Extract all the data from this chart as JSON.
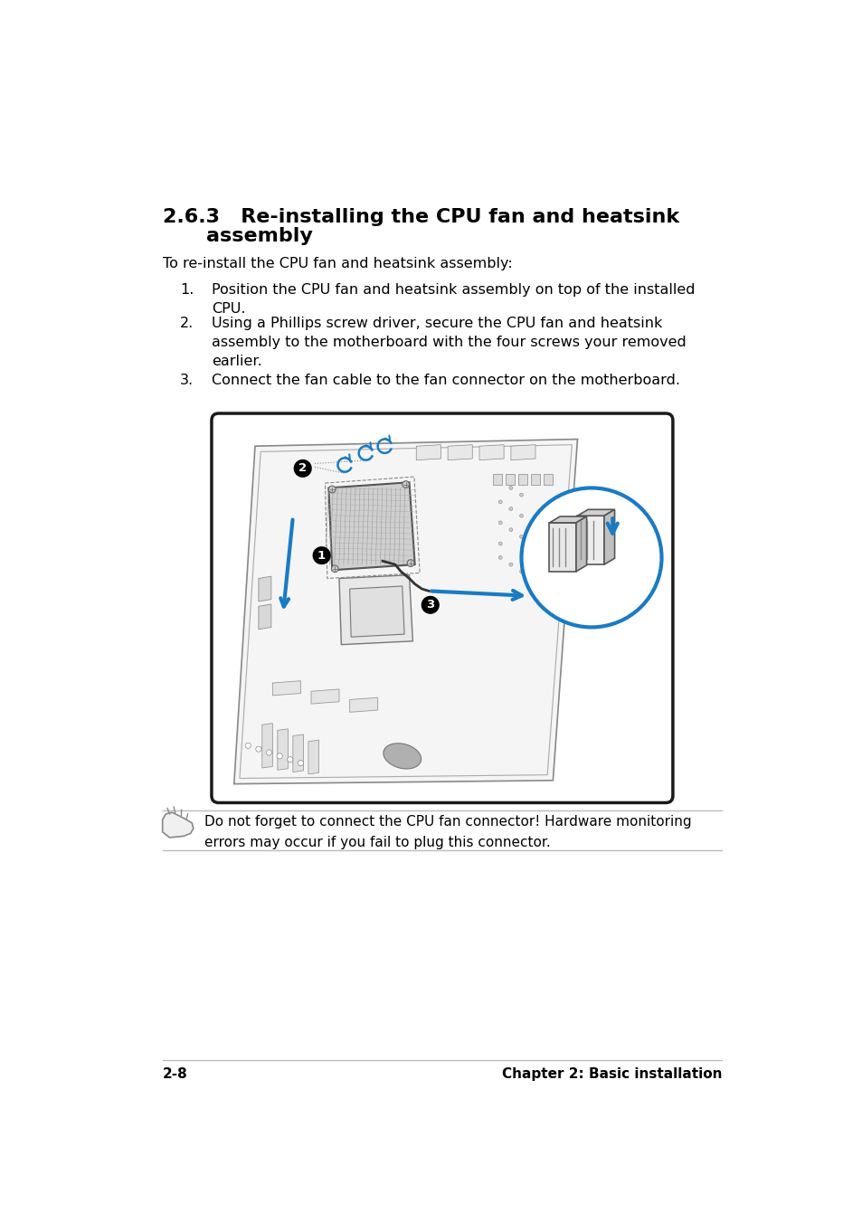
{
  "bg_color": "#ffffff",
  "section_number": "2.6.3",
  "section_title_line1": "Re-installing the CPU fan and heatsink",
  "section_title_line2": "assembly",
  "intro_text": "To re-install the CPU fan and heatsink assembly:",
  "steps": [
    "Position the CPU fan and heatsink assembly on top of the installed\nCPU.",
    "Using a Phillips screw driver, secure the CPU fan and heatsink\nassembly to the motherboard with the four screws your removed\nearlier.",
    "Connect the fan cable to the fan connector on the motherboard."
  ],
  "note_text": "Do not forget to connect the CPU fan connector! Hardware monitoring\nerrors may occur if you fail to plug this connector.",
  "footer_left": "2-8",
  "footer_right": "Chapter 2: Basic installation",
  "title_fontsize": 15,
  "body_fontsize": 11.5,
  "footer_fontsize": 11,
  "blue_color": "#1a7bc4",
  "line_color": "#bbbbbb",
  "diagram_edge_color": "#222222",
  "mb_line_color": "#aaaaaa",
  "mb_fill": "#ffffff"
}
